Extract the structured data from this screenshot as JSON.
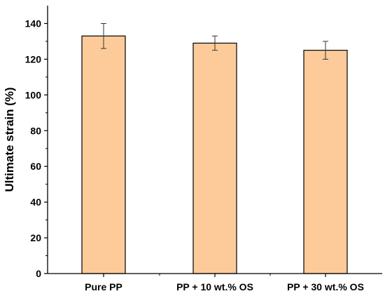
{
  "chart_data": {
    "type": "bar",
    "title": "",
    "xlabel": "",
    "ylabel": "Ultimate strain (%)",
    "categories": [
      "Pure PP",
      "PP + 10 wt.% OS",
      "PP + 30 wt.% OS"
    ],
    "values": [
      133,
      129,
      125
    ],
    "error": [
      7,
      4,
      5
    ],
    "ylim": [
      0,
      150
    ],
    "yticks": [
      0,
      20,
      40,
      60,
      80,
      100,
      120,
      140
    ],
    "grid": false,
    "bar_color": "#FDCB9A",
    "bar_edge_color": "#000000"
  }
}
